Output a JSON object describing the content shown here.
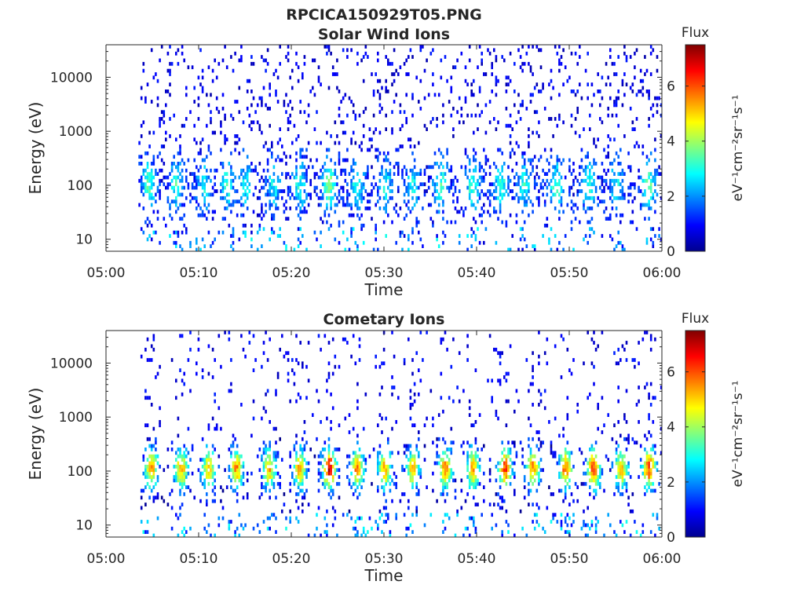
{
  "figure": {
    "title": "RPCICA150929T05.PNG"
  },
  "chart_data": [
    {
      "type": "heatmap",
      "title": "Solar Wind Ions",
      "xlabel": "Time",
      "ylabel": "Energy (eV)",
      "x_tick_labels": [
        "05:00",
        "05:10",
        "05:20",
        "05:30",
        "05:40",
        "05:50",
        "06:00"
      ],
      "y_tick_labels": [
        "10",
        "100",
        "1000",
        "10000"
      ],
      "y_scale": "log",
      "x_range": [
        "05:00",
        "06:00"
      ],
      "y_range": [
        6,
        40000
      ],
      "colorbar": {
        "title": "Flux",
        "label": "eV⁻¹cm⁻²sr⁻¹s⁻¹",
        "tick_labels": [
          "0",
          "2",
          "4",
          "6"
        ],
        "range": [
          0,
          7.5
        ],
        "colormap": "jet"
      },
      "data_start_minute": 3.5,
      "flux_bursts": [
        {
          "minute": 4.5,
          "peak_flux": 3.0
        },
        {
          "minute": 7.5,
          "peak_flux": 2.8
        },
        {
          "minute": 10.5,
          "peak_flux": 2.5
        },
        {
          "minute": 13.0,
          "peak_flux": 2.6
        },
        {
          "minute": 15.0,
          "peak_flux": 2.4
        },
        {
          "minute": 18.0,
          "peak_flux": 2.3
        },
        {
          "minute": 20.8,
          "peak_flux": 2.6
        },
        {
          "minute": 24.0,
          "peak_flux": 3.5
        },
        {
          "minute": 27.0,
          "peak_flux": 2.8
        },
        {
          "minute": 30.0,
          "peak_flux": 2.5
        },
        {
          "minute": 33.0,
          "peak_flux": 2.4
        },
        {
          "minute": 36.0,
          "peak_flux": 2.9
        },
        {
          "minute": 39.5,
          "peak_flux": 3.0
        },
        {
          "minute": 42.5,
          "peak_flux": 2.8
        },
        {
          "minute": 45.0,
          "peak_flux": 2.6
        },
        {
          "minute": 48.5,
          "peak_flux": 3.0
        },
        {
          "minute": 52.0,
          "peak_flux": 2.9
        },
        {
          "minute": 55.0,
          "peak_flux": 2.5
        },
        {
          "minute": 58.5,
          "peak_flux": 3.2
        }
      ]
    },
    {
      "type": "heatmap",
      "title": "Cometary Ions",
      "xlabel": "Time",
      "ylabel": "Energy (eV)",
      "x_tick_labels": [
        "05:00",
        "05:10",
        "05:20",
        "05:30",
        "05:40",
        "05:50",
        "06:00"
      ],
      "y_tick_labels": [
        "10",
        "100",
        "1000",
        "10000"
      ],
      "y_scale": "log",
      "x_range": [
        "05:00",
        "06:00"
      ],
      "y_range": [
        6,
        40000
      ],
      "colorbar": {
        "title": "Flux",
        "label": "eV⁻¹cm⁻²sr⁻¹s⁻¹",
        "tick_labels": [
          "0",
          "2",
          "4",
          "6"
        ],
        "range": [
          0,
          7.5
        ],
        "colormap": "jet"
      },
      "data_start_minute": 3.5,
      "flux_bursts": [
        {
          "minute": 4.8,
          "peak_flux": 4.8
        },
        {
          "minute": 8.0,
          "peak_flux": 4.8
        },
        {
          "minute": 11.0,
          "peak_flux": 4.5
        },
        {
          "minute": 14.0,
          "peak_flux": 4.9
        },
        {
          "minute": 17.5,
          "peak_flux": 4.6
        },
        {
          "minute": 20.8,
          "peak_flux": 4.7
        },
        {
          "minute": 24.0,
          "peak_flux": 6.2
        },
        {
          "minute": 27.0,
          "peak_flux": 5.2
        },
        {
          "minute": 30.0,
          "peak_flux": 4.8
        },
        {
          "minute": 33.0,
          "peak_flux": 4.5
        },
        {
          "minute": 36.5,
          "peak_flux": 5.0
        },
        {
          "minute": 39.5,
          "peak_flux": 4.8
        },
        {
          "minute": 43.0,
          "peak_flux": 5.5
        },
        {
          "minute": 46.0,
          "peak_flux": 5.0
        },
        {
          "minute": 49.5,
          "peak_flux": 5.3
        },
        {
          "minute": 52.5,
          "peak_flux": 5.6
        },
        {
          "minute": 55.5,
          "peak_flux": 4.6
        },
        {
          "minute": 58.5,
          "peak_flux": 5.5
        }
      ]
    }
  ]
}
